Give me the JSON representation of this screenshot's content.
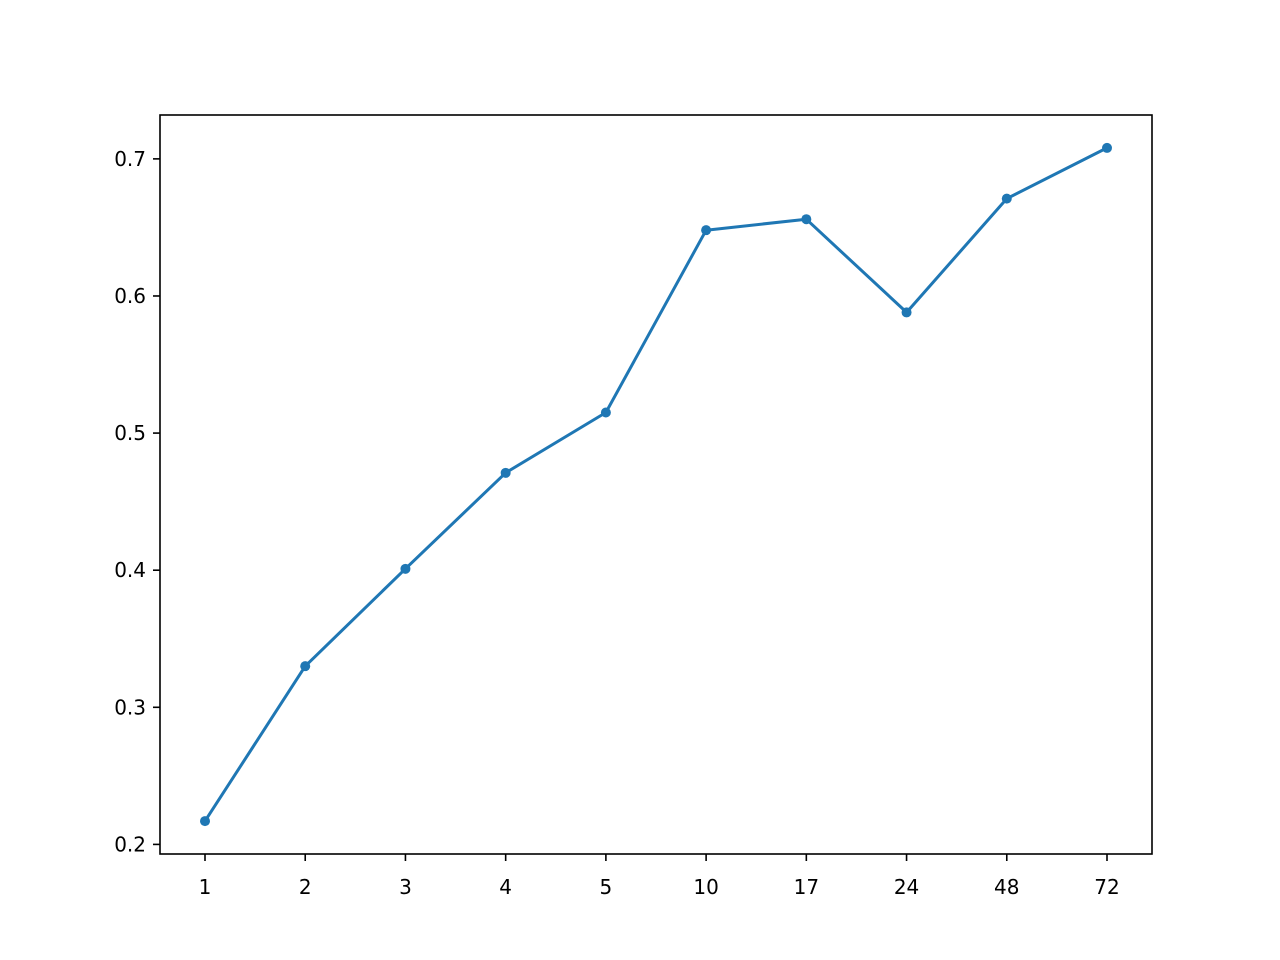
{
  "chart_data": {
    "type": "line",
    "title": "",
    "xlabel": "",
    "ylabel": "",
    "categories": [
      "1",
      "2",
      "3",
      "4",
      "5",
      "10",
      "17",
      "24",
      "48",
      "72"
    ],
    "series": [
      {
        "values": [
          0.217,
          0.33,
          0.401,
          0.471,
          0.515,
          0.648,
          0.656,
          0.588,
          0.671,
          0.708
        ]
      }
    ],
    "y_ticks": [
      "0.2",
      "0.3",
      "0.4",
      "0.5",
      "0.6",
      "0.7"
    ],
    "ylim": [
      0.193,
      0.732
    ],
    "grid": false,
    "line_color": "#1f77b4",
    "marker": "dot"
  }
}
